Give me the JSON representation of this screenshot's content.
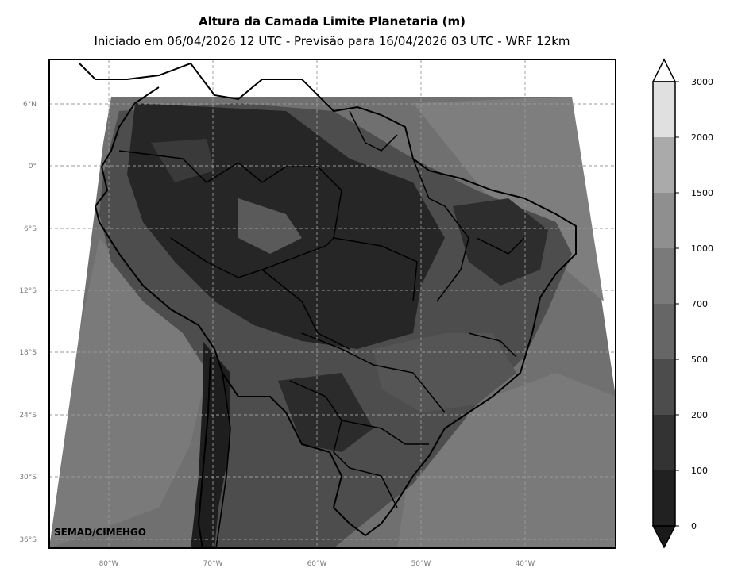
{
  "title": "Altura da Camada Limite Planetaria (m)",
  "subtitle": "Iniciado em 06/04/2026 12 UTC - Previsão para 16/04/2026 03 UTC - WRF 12km",
  "credit": "SEMAD/CIMEHGO",
  "lat_labels": [
    "6°N",
    "0°",
    "6°S",
    "12°S",
    "18°S",
    "24°S",
    "30°S",
    "36°S"
  ],
  "lon_labels": [
    "80°W",
    "70°W",
    "60°W",
    "50°W",
    "40°W"
  ],
  "colorbar": {
    "levels": [
      "0",
      "100",
      "200",
      "500",
      "700",
      "1000",
      "1500",
      "2000",
      "3000"
    ],
    "colors": [
      "#1a1a1a",
      "#212121",
      "#333333",
      "#4c4c4c",
      "#666666",
      "#7a7a7a",
      "#8f8f8f",
      "#aaaaaa",
      "#e0e0e0"
    ],
    "extend": "both"
  },
  "map": {
    "projection": "lat-lon",
    "lon_range": [
      -86,
      -32
    ],
    "lat_range": [
      -37,
      10
    ],
    "gridlines": "dashed",
    "region": "South America"
  }
}
